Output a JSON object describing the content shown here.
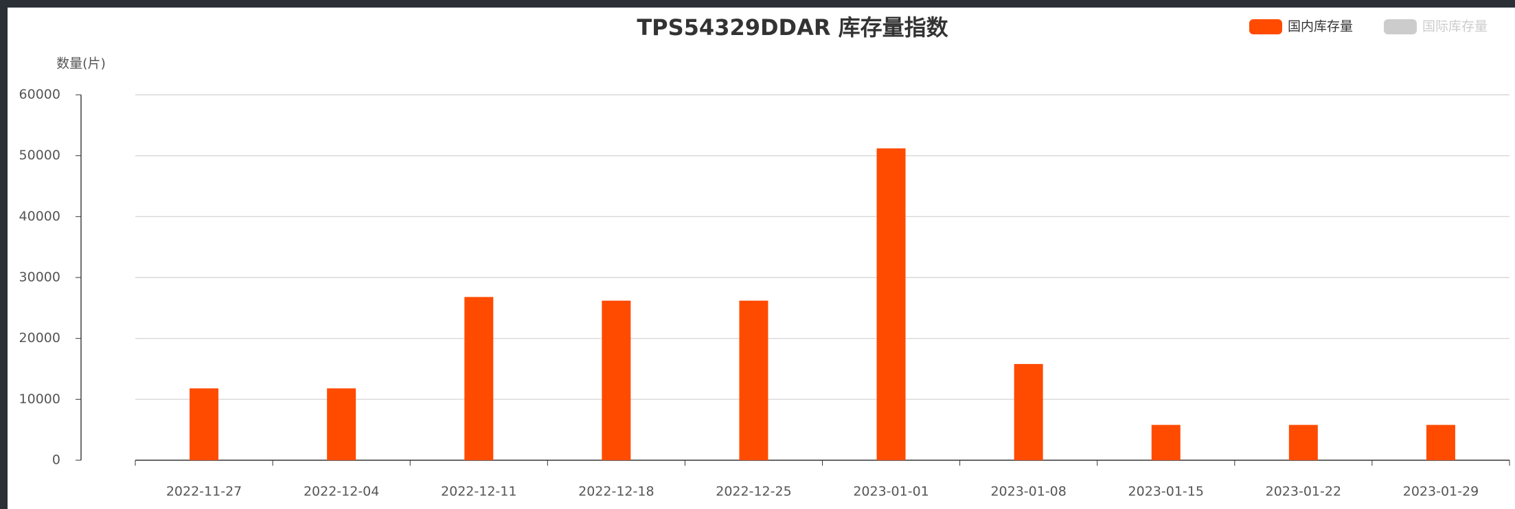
{
  "chart_data": {
    "type": "bar",
    "title": "TPS54329DDAR 库存量指数",
    "y_axis_label": "数量(片)",
    "categories": [
      "2022-11-27",
      "2022-12-04",
      "2022-12-11",
      "2022-12-18",
      "2022-12-25",
      "2023-01-01",
      "2023-01-08",
      "2023-01-15",
      "2023-01-22",
      "2023-01-29"
    ],
    "series": [
      {
        "name": "国内库存量",
        "color": "#ff4b00",
        "values": [
          11800,
          11800,
          26800,
          26200,
          26200,
          51200,
          15800,
          5800,
          5800,
          5800
        ]
      },
      {
        "name": "国际库存量",
        "color": "#cccccc",
        "values": [
          null,
          null,
          null,
          null,
          null,
          null,
          null,
          null,
          null,
          null
        ]
      }
    ],
    "ylim": [
      0,
      60000
    ],
    "yticks": [
      0,
      10000,
      20000,
      30000,
      40000,
      50000,
      60000
    ],
    "grid": true,
    "legend": "top-right"
  }
}
